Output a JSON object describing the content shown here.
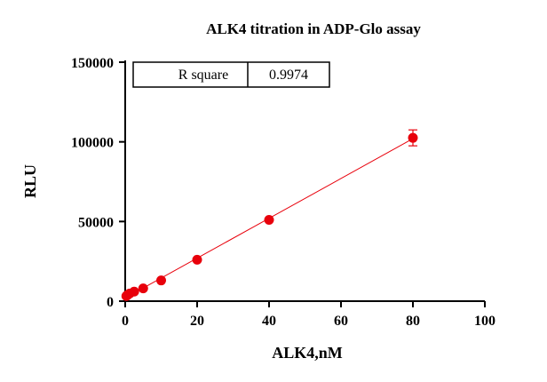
{
  "chart_data": {
    "type": "scatter",
    "title": "ALK4 titration in ADP-Glo assay",
    "xlabel": "ALK4,nM",
    "ylabel": "RLU",
    "xlim": [
      0,
      100
    ],
    "ylim": [
      0,
      150000
    ],
    "x_ticks": [
      "0",
      "20",
      "40",
      "60",
      "80",
      "100"
    ],
    "y_ticks": [
      "0",
      "50000",
      "100000",
      "150000"
    ],
    "grid": false,
    "marker_color": "#e8000b",
    "line_color": "#e8000b",
    "series": [
      {
        "x": [
          0.3125,
          0.625,
          1.25,
          2.5,
          5,
          10,
          20,
          40,
          80
        ],
        "y": [
          3200,
          3800,
          4800,
          6000,
          8000,
          13000,
          26000,
          51000,
          102500
        ],
        "error": [
          0,
          0,
          0,
          0,
          0,
          0,
          0,
          0,
          5000
        ]
      }
    ],
    "fit_line": {
      "x": [
        0,
        80
      ],
      "y": [
        2000,
        102000
      ]
    },
    "stats_table": {
      "label": "R square",
      "value": "0.9974"
    }
  }
}
